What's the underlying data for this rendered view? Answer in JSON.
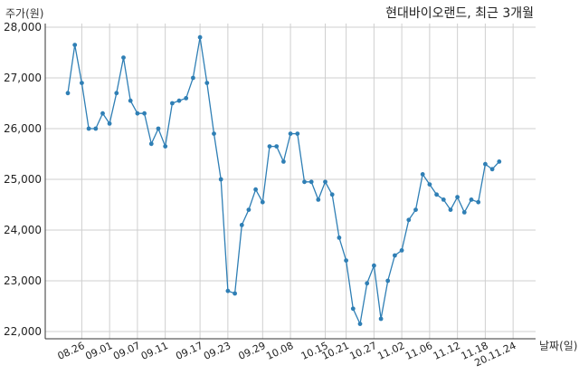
{
  "chart_data": {
    "type": "line",
    "title": "현대바이오랜드, 최근 3개월",
    "ylabel": "주가(원)",
    "xlabel": "날짜(일)",
    "ylim": [
      22000,
      28000
    ],
    "yticks": [
      "22,000",
      "23,000",
      "24,000",
      "25,000",
      "26,000",
      "27,000",
      "28,000"
    ],
    "yticks_values": [
      22000,
      23000,
      24000,
      25000,
      26000,
      27000,
      28000
    ],
    "xticks": [
      "08.26",
      "09.01",
      "09.07",
      "09.11",
      "09.17",
      "09.23",
      "09.29",
      "10.08",
      "10.15",
      "10.21",
      "10.27",
      "11.02",
      "11.06",
      "11.12",
      "11.18",
      "20.11.24"
    ],
    "xticks_index": [
      2,
      6,
      10,
      14,
      19,
      23,
      28,
      32,
      37,
      40,
      44,
      48,
      52,
      56,
      60,
      64
    ],
    "grid": true,
    "color": "#2f7fb5",
    "values": [
      26700,
      27650,
      26900,
      26000,
      26000,
      26300,
      26100,
      26700,
      27400,
      26550,
      26300,
      26300,
      25700,
      26000,
      25650,
      26500,
      26550,
      26600,
      27000,
      27800,
      26900,
      25900,
      25000,
      22800,
      22750,
      24100,
      24400,
      24800,
      24550,
      25650,
      25650,
      25350,
      25900,
      25900,
      24950,
      24950,
      24600,
      24950,
      24700,
      23850,
      23400,
      22450,
      22150,
      22950,
      23300,
      22250,
      23000,
      23500,
      23600,
      24200,
      24400,
      25100,
      24900,
      24700,
      24600,
      24400,
      24650,
      24350,
      24600,
      24550,
      25300,
      25200,
      25350
    ]
  }
}
